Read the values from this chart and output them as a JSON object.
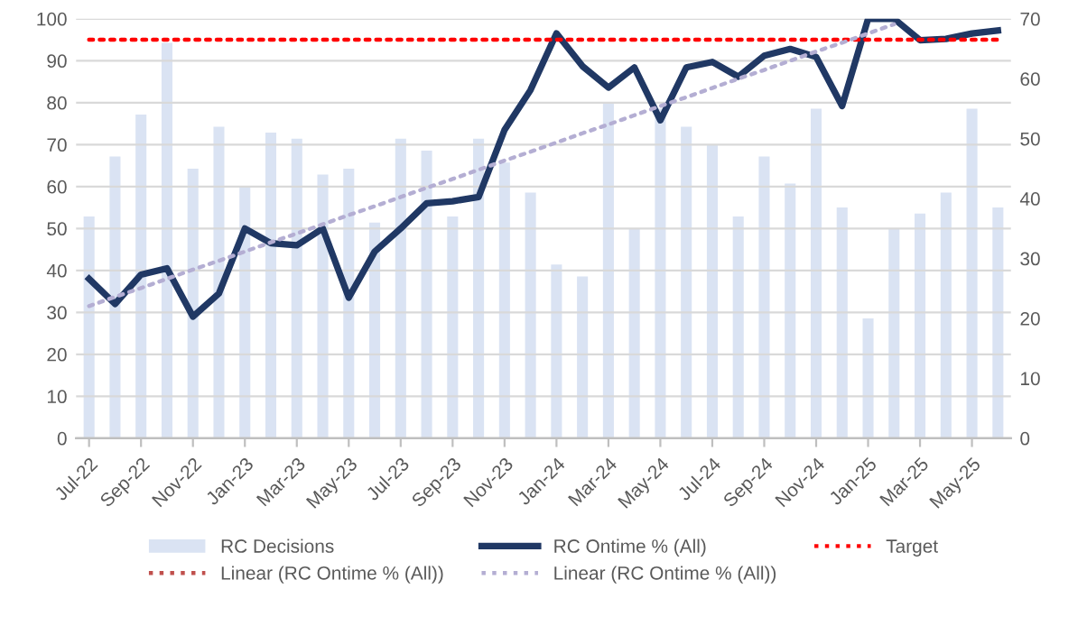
{
  "chart_data": {
    "type": "bar",
    "categories": [
      "Jul-22",
      null,
      "Sep-22",
      null,
      "Nov-22",
      null,
      "Jan-23",
      null,
      "Mar-23",
      null,
      "May-23",
      null,
      "Jul-23",
      null,
      "Sep-23",
      null,
      "Nov-23",
      null,
      "Jan-24",
      null,
      "Mar-24",
      null,
      "May-24",
      null,
      "Jul-24",
      null,
      "Sep-24",
      null,
      "Nov-24",
      null,
      "Jan-25",
      null,
      "Mar-25",
      null,
      "May-25",
      null
    ],
    "series": [
      {
        "name": "RC Decisions",
        "axis": "y2",
        "color": "#dae3f3",
        "values": [
          37,
          47,
          54,
          66,
          45,
          52,
          42,
          51,
          50,
          44,
          45,
          36,
          50,
          48,
          37,
          50,
          46,
          41,
          29,
          27,
          56,
          35,
          55,
          52,
          49,
          37,
          47,
          42.5,
          55,
          38.5,
          20,
          35,
          37.5,
          41,
          55,
          38.5
        ]
      },
      {
        "name": "RC Ontime % (All)",
        "type": "line",
        "color": "#203864",
        "line_style": "solid",
        "values": [
          38,
          32,
          39,
          40.5,
          29,
          34.5,
          50,
          46.5,
          46,
          50,
          33.5,
          44.5,
          50,
          56,
          56.5,
          57.5,
          73.5,
          83,
          96.5,
          88.7,
          83.6,
          88.4,
          75.8,
          88.4,
          89.7,
          86.2,
          91.2,
          92.8,
          90.9,
          79.2,
          100,
          100,
          94.9,
          95.2,
          96.5,
          97.2
        ]
      },
      {
        "name": "Target",
        "type": "line",
        "color": "#ff0000",
        "line_style": "dotted",
        "values": [
          95,
          95,
          95,
          95,
          95,
          95,
          95,
          95,
          95,
          95,
          95,
          95,
          95,
          95,
          95,
          95,
          95,
          95,
          95,
          95,
          95,
          95,
          95,
          95,
          95,
          95,
          95,
          95,
          95,
          95,
          95,
          95,
          95,
          95,
          95,
          95
        ]
      },
      {
        "name": "Linear (RC Ontime % (All))",
        "type": "line",
        "color": "#c0504d",
        "line_style": "dotted",
        "values": [
          null,
          null,
          null,
          null,
          null,
          null,
          null,
          null,
          null,
          null,
          null,
          null,
          null,
          null,
          null,
          null,
          null,
          null,
          null,
          null,
          null,
          null,
          null,
          null,
          null,
          null,
          null,
          null,
          null,
          null,
          null,
          null,
          null,
          null,
          null,
          null
        ]
      },
      {
        "name": "Linear (RC Ontime % (All))",
        "type": "line",
        "color": "#b4aed3",
        "line_style": "dotted",
        "values": [
          31.5,
          33.7,
          35.8,
          38,
          40.2,
          42.3,
          44.5,
          46.7,
          48.8,
          51,
          53.2,
          55.3,
          57.5,
          59.7,
          61.8,
          64,
          66.2,
          68.3,
          70.5,
          72.7,
          74.8,
          77,
          79.2,
          81.3,
          83.5,
          85.7,
          87.8,
          90,
          92.2,
          94.3,
          96.5,
          98.7,
          null,
          null,
          null,
          null
        ]
      }
    ],
    "ylim": [
      0,
      100
    ],
    "yticks": [
      0,
      10,
      20,
      30,
      40,
      50,
      60,
      70,
      80,
      90,
      100
    ],
    "y2lim": [
      0,
      70
    ],
    "y2ticks": [
      0,
      10,
      20,
      30,
      40,
      50,
      60,
      70
    ],
    "grid": "y",
    "legend": "bottom",
    "marker": "none"
  }
}
